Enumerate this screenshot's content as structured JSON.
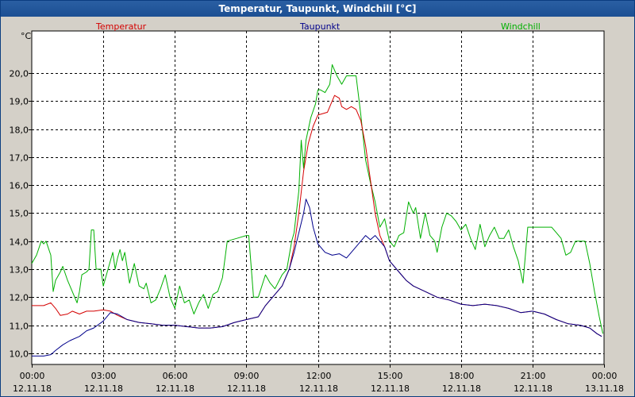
{
  "window": {
    "title": "Temperatur, Taupunkt, Windchill [°C]"
  },
  "chart_data": {
    "type": "line",
    "ylabel": "°C",
    "ylim": [
      9.6,
      21.5
    ],
    "yticks": [
      10.0,
      11.0,
      12.0,
      13.0,
      14.0,
      15.0,
      16.0,
      17.0,
      18.0,
      19.0,
      20.0
    ],
    "ytick_labels": [
      "10,0",
      "11,0",
      "12,0",
      "13,0",
      "14,0",
      "15,0",
      "16,0",
      "17,0",
      "18,0",
      "19,0",
      "20,0"
    ],
    "xlim": [
      0,
      24
    ],
    "xticks": [
      0,
      3,
      6,
      9,
      12,
      15,
      18,
      21,
      24
    ],
    "xtick_labels": [
      [
        "00:00",
        "12.11.18"
      ],
      [
        "03:00",
        "12.11.18"
      ],
      [
        "06:00",
        "12.11.18"
      ],
      [
        "09:00",
        "12.11.18"
      ],
      [
        "12:00",
        "12.11.18"
      ],
      [
        "15:00",
        "12.11.18"
      ],
      [
        "18:00",
        "12.11.18"
      ],
      [
        "21:00",
        "12.11.18"
      ],
      [
        "00:00",
        "13.11.18"
      ]
    ],
    "grid": true,
    "legend_position": "top",
    "series": [
      {
        "name": "Temperatur",
        "color": "#d40000",
        "points": [
          [
            0,
            11.7
          ],
          [
            0.5,
            11.7
          ],
          [
            0.8,
            11.8
          ],
          [
            1.0,
            11.6
          ],
          [
            1.2,
            11.35
          ],
          [
            1.5,
            11.4
          ],
          [
            1.7,
            11.5
          ],
          [
            2.0,
            11.4
          ],
          [
            2.3,
            11.5
          ],
          [
            2.6,
            11.5
          ],
          [
            3.0,
            11.55
          ],
          [
            3.3,
            11.5
          ],
          [
            3.6,
            11.35
          ],
          [
            4.0,
            11.2
          ],
          [
            4.5,
            11.1
          ],
          [
            5.0,
            11.05
          ],
          [
            5.5,
            11.0
          ],
          [
            6.0,
            11.0
          ],
          [
            6.5,
            10.95
          ],
          [
            7.0,
            10.9
          ],
          [
            7.5,
            10.9
          ],
          [
            8.0,
            10.95
          ],
          [
            8.5,
            11.1
          ],
          [
            9.0,
            11.2
          ],
          [
            9.5,
            11.3
          ],
          [
            9.8,
            11.7
          ],
          [
            10.2,
            12.1
          ],
          [
            10.5,
            12.4
          ],
          [
            10.8,
            13.0
          ],
          [
            11.0,
            13.8
          ],
          [
            11.2,
            15.0
          ],
          [
            11.4,
            16.5
          ],
          [
            11.6,
            17.5
          ],
          [
            11.8,
            18.1
          ],
          [
            12.0,
            18.5
          ],
          [
            12.2,
            18.55
          ],
          [
            12.4,
            18.6
          ],
          [
            12.6,
            19.0
          ],
          [
            12.7,
            19.2
          ],
          [
            12.9,
            19.1
          ],
          [
            13.0,
            18.8
          ],
          [
            13.2,
            18.7
          ],
          [
            13.4,
            18.8
          ],
          [
            13.6,
            18.7
          ],
          [
            13.8,
            18.3
          ],
          [
            14.0,
            17.4
          ],
          [
            14.2,
            16.2
          ],
          [
            14.4,
            15.0
          ],
          [
            14.6,
            14.2
          ],
          [
            14.8,
            13.8
          ],
          [
            15.0,
            13.3
          ],
          [
            15.4,
            12.9
          ],
          [
            15.7,
            12.6
          ],
          [
            16.0,
            12.4
          ],
          [
            16.5,
            12.2
          ],
          [
            17.0,
            12.0
          ],
          [
            17.5,
            11.9
          ],
          [
            18.0,
            11.75
          ],
          [
            18.5,
            11.7
          ],
          [
            19.0,
            11.75
          ],
          [
            19.5,
            11.7
          ],
          [
            20.0,
            11.6
          ],
          [
            20.5,
            11.45
          ],
          [
            21.0,
            11.5
          ],
          [
            21.5,
            11.4
          ],
          [
            22.0,
            11.2
          ],
          [
            22.5,
            11.05
          ],
          [
            23.0,
            11.0
          ],
          [
            23.4,
            10.9
          ],
          [
            23.7,
            10.7
          ],
          [
            23.9,
            10.6
          ]
        ]
      },
      {
        "name": "Taupunkt",
        "color": "#00008b",
        "points": [
          [
            0,
            9.9
          ],
          [
            0.5,
            9.9
          ],
          [
            0.8,
            9.95
          ],
          [
            1.0,
            10.1
          ],
          [
            1.3,
            10.3
          ],
          [
            1.6,
            10.45
          ],
          [
            2.0,
            10.6
          ],
          [
            2.3,
            10.8
          ],
          [
            2.6,
            10.9
          ],
          [
            3.0,
            11.15
          ],
          [
            3.3,
            11.45
          ],
          [
            3.6,
            11.4
          ],
          [
            4.0,
            11.2
          ],
          [
            4.5,
            11.1
          ],
          [
            5.0,
            11.05
          ],
          [
            5.5,
            11.0
          ],
          [
            6.0,
            11.0
          ],
          [
            6.5,
            10.95
          ],
          [
            7.0,
            10.9
          ],
          [
            7.5,
            10.9
          ],
          [
            8.0,
            10.95
          ],
          [
            8.5,
            11.1
          ],
          [
            9.0,
            11.2
          ],
          [
            9.5,
            11.3
          ],
          [
            9.8,
            11.7
          ],
          [
            10.2,
            12.1
          ],
          [
            10.5,
            12.4
          ],
          [
            10.8,
            13.0
          ],
          [
            11.0,
            13.6
          ],
          [
            11.2,
            14.3
          ],
          [
            11.4,
            15.0
          ],
          [
            11.5,
            15.5
          ],
          [
            11.65,
            15.2
          ],
          [
            11.8,
            14.5
          ],
          [
            12.0,
            13.9
          ],
          [
            12.3,
            13.6
          ],
          [
            12.6,
            13.5
          ],
          [
            12.9,
            13.55
          ],
          [
            13.2,
            13.4
          ],
          [
            13.5,
            13.7
          ],
          [
            13.8,
            14.0
          ],
          [
            14.0,
            14.2
          ],
          [
            14.2,
            14.05
          ],
          [
            14.4,
            14.2
          ],
          [
            14.6,
            14.0
          ],
          [
            14.8,
            13.8
          ],
          [
            15.0,
            13.3
          ],
          [
            15.4,
            12.9
          ],
          [
            15.7,
            12.6
          ],
          [
            16.0,
            12.4
          ],
          [
            16.5,
            12.2
          ],
          [
            17.0,
            12.0
          ],
          [
            17.5,
            11.9
          ],
          [
            18.0,
            11.75
          ],
          [
            18.5,
            11.7
          ],
          [
            19.0,
            11.75
          ],
          [
            19.5,
            11.7
          ],
          [
            20.0,
            11.6
          ],
          [
            20.5,
            11.45
          ],
          [
            21.0,
            11.5
          ],
          [
            21.5,
            11.4
          ],
          [
            22.0,
            11.2
          ],
          [
            22.5,
            11.05
          ],
          [
            23.0,
            11.0
          ],
          [
            23.4,
            10.9
          ],
          [
            23.7,
            10.7
          ],
          [
            23.9,
            10.6
          ]
        ]
      },
      {
        "name": "Windchill",
        "color": "#00b000",
        "points": [
          [
            0,
            13.2
          ],
          [
            0.2,
            13.5
          ],
          [
            0.4,
            14.0
          ],
          [
            0.5,
            13.9
          ],
          [
            0.6,
            14.0
          ],
          [
            0.8,
            13.5
          ],
          [
            0.9,
            12.2
          ],
          [
            1.0,
            12.6
          ],
          [
            1.2,
            12.9
          ],
          [
            1.3,
            13.1
          ],
          [
            1.5,
            12.6
          ],
          [
            1.8,
            12.0
          ],
          [
            1.9,
            11.8
          ],
          [
            2.0,
            12.2
          ],
          [
            2.1,
            12.8
          ],
          [
            2.3,
            12.9
          ],
          [
            2.4,
            13.0
          ],
          [
            2.5,
            14.4
          ],
          [
            2.6,
            14.4
          ],
          [
            2.7,
            13.0
          ],
          [
            2.9,
            13.0
          ],
          [
            3.0,
            12.4
          ],
          [
            3.2,
            13.0
          ],
          [
            3.4,
            13.6
          ],
          [
            3.5,
            13.0
          ],
          [
            3.6,
            13.4
          ],
          [
            3.7,
            13.7
          ],
          [
            3.8,
            13.3
          ],
          [
            3.9,
            13.6
          ],
          [
            4.1,
            12.5
          ],
          [
            4.3,
            13.2
          ],
          [
            4.5,
            12.4
          ],
          [
            4.7,
            12.3
          ],
          [
            4.8,
            12.5
          ],
          [
            5.0,
            11.8
          ],
          [
            5.2,
            11.9
          ],
          [
            5.4,
            12.3
          ],
          [
            5.6,
            12.8
          ],
          [
            5.8,
            12.0
          ],
          [
            6.0,
            11.6
          ],
          [
            6.2,
            12.4
          ],
          [
            6.4,
            11.8
          ],
          [
            6.6,
            11.9
          ],
          [
            6.8,
            11.4
          ],
          [
            7.0,
            11.8
          ],
          [
            7.2,
            12.1
          ],
          [
            7.4,
            11.6
          ],
          [
            7.6,
            12.1
          ],
          [
            7.8,
            12.2
          ],
          [
            8.0,
            12.7
          ],
          [
            8.2,
            14.0
          ],
          [
            8.6,
            14.1
          ],
          [
            9.0,
            14.2
          ],
          [
            9.1,
            14.2
          ],
          [
            9.3,
            12.0
          ],
          [
            9.5,
            12.0
          ],
          [
            9.8,
            12.8
          ],
          [
            10.0,
            12.5
          ],
          [
            10.2,
            12.3
          ],
          [
            10.5,
            12.8
          ],
          [
            10.7,
            13.0
          ],
          [
            10.9,
            14.0
          ],
          [
            11.0,
            14.3
          ],
          [
            11.2,
            15.8
          ],
          [
            11.3,
            17.6
          ],
          [
            11.4,
            16.6
          ],
          [
            11.5,
            17.6
          ],
          [
            11.7,
            18.4
          ],
          [
            11.9,
            18.9
          ],
          [
            12.0,
            19.4
          ],
          [
            12.1,
            19.4
          ],
          [
            12.3,
            19.3
          ],
          [
            12.5,
            19.6
          ],
          [
            12.6,
            20.3
          ],
          [
            12.8,
            19.9
          ],
          [
            13.0,
            19.6
          ],
          [
            13.2,
            19.9
          ],
          [
            13.4,
            19.9
          ],
          [
            13.6,
            19.9
          ],
          [
            13.8,
            18.5
          ],
          [
            14.0,
            16.9
          ],
          [
            14.2,
            16.1
          ],
          [
            14.4,
            15.4
          ],
          [
            14.6,
            14.5
          ],
          [
            14.8,
            14.8
          ],
          [
            15.0,
            14.0
          ],
          [
            15.2,
            13.8
          ],
          [
            15.4,
            14.2
          ],
          [
            15.6,
            14.3
          ],
          [
            15.8,
            15.4
          ],
          [
            16.0,
            15.0
          ],
          [
            16.1,
            15.2
          ],
          [
            16.3,
            14.1
          ],
          [
            16.5,
            15.0
          ],
          [
            16.7,
            14.2
          ],
          [
            16.9,
            14.0
          ],
          [
            17.0,
            13.6
          ],
          [
            17.2,
            14.5
          ],
          [
            17.4,
            15.0
          ],
          [
            17.6,
            14.9
          ],
          [
            17.8,
            14.7
          ],
          [
            18.0,
            14.4
          ],
          [
            18.2,
            14.6
          ],
          [
            18.4,
            14.1
          ],
          [
            18.6,
            13.7
          ],
          [
            18.8,
            14.6
          ],
          [
            19.0,
            13.8
          ],
          [
            19.2,
            14.2
          ],
          [
            19.4,
            14.5
          ],
          [
            19.6,
            14.1
          ],
          [
            19.8,
            14.1
          ],
          [
            20.0,
            14.4
          ],
          [
            20.2,
            13.8
          ],
          [
            20.4,
            13.3
          ],
          [
            20.6,
            12.5
          ],
          [
            20.8,
            14.5
          ],
          [
            21.0,
            14.5
          ],
          [
            21.5,
            14.5
          ],
          [
            21.8,
            14.5
          ],
          [
            22.0,
            14.3
          ],
          [
            22.2,
            14.1
          ],
          [
            22.4,
            13.5
          ],
          [
            22.6,
            13.6
          ],
          [
            22.8,
            14.0
          ],
          [
            23.0,
            14.0
          ],
          [
            23.2,
            14.0
          ],
          [
            23.4,
            13.2
          ],
          [
            23.6,
            12.2
          ],
          [
            23.8,
            11.3
          ],
          [
            23.95,
            10.7
          ]
        ]
      }
    ]
  }
}
